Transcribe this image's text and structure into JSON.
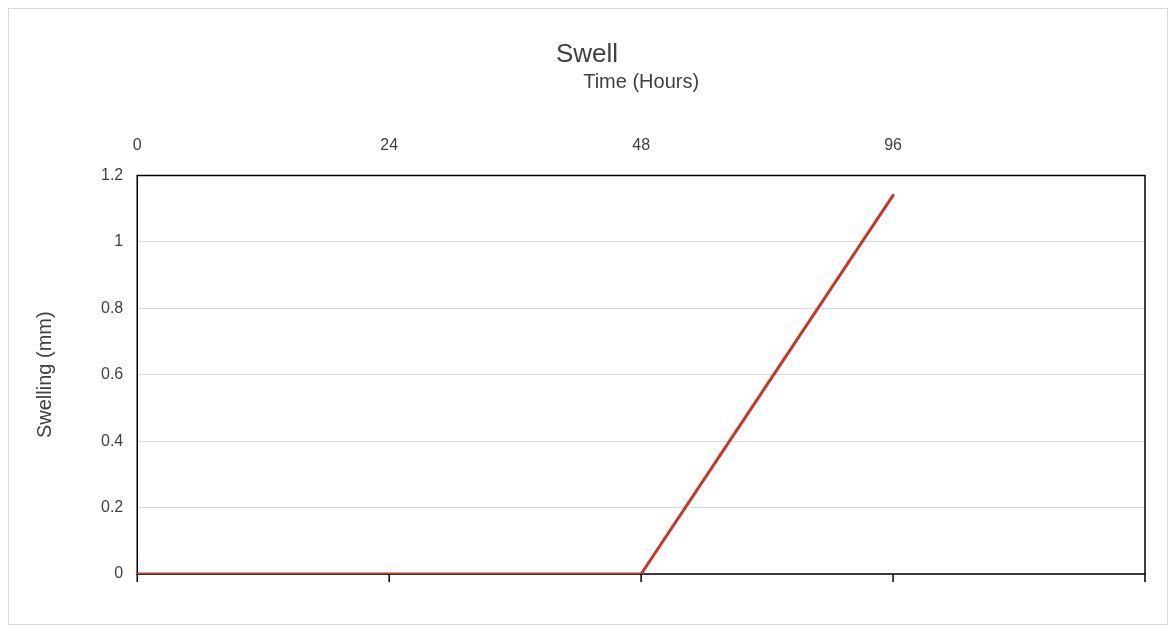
{
  "chart_data": {
    "type": "line",
    "title": "Swell",
    "xlabel": "Time (Hours)",
    "ylabel": "Swelling (mm)",
    "categories": [
      "0",
      "24",
      "48",
      "96",
      null
    ],
    "series": [
      {
        "color": "#c0392b",
        "values": [
          0,
          0,
          0,
          1.14,
          null
        ]
      }
    ],
    "ylim": [
      0,
      1.2
    ],
    "yticks": [
      0,
      0.2,
      0.4,
      0.6,
      0.8,
      1,
      1.2
    ],
    "grid": "y",
    "legend": false,
    "marker": "none",
    "line_style": "solid"
  }
}
